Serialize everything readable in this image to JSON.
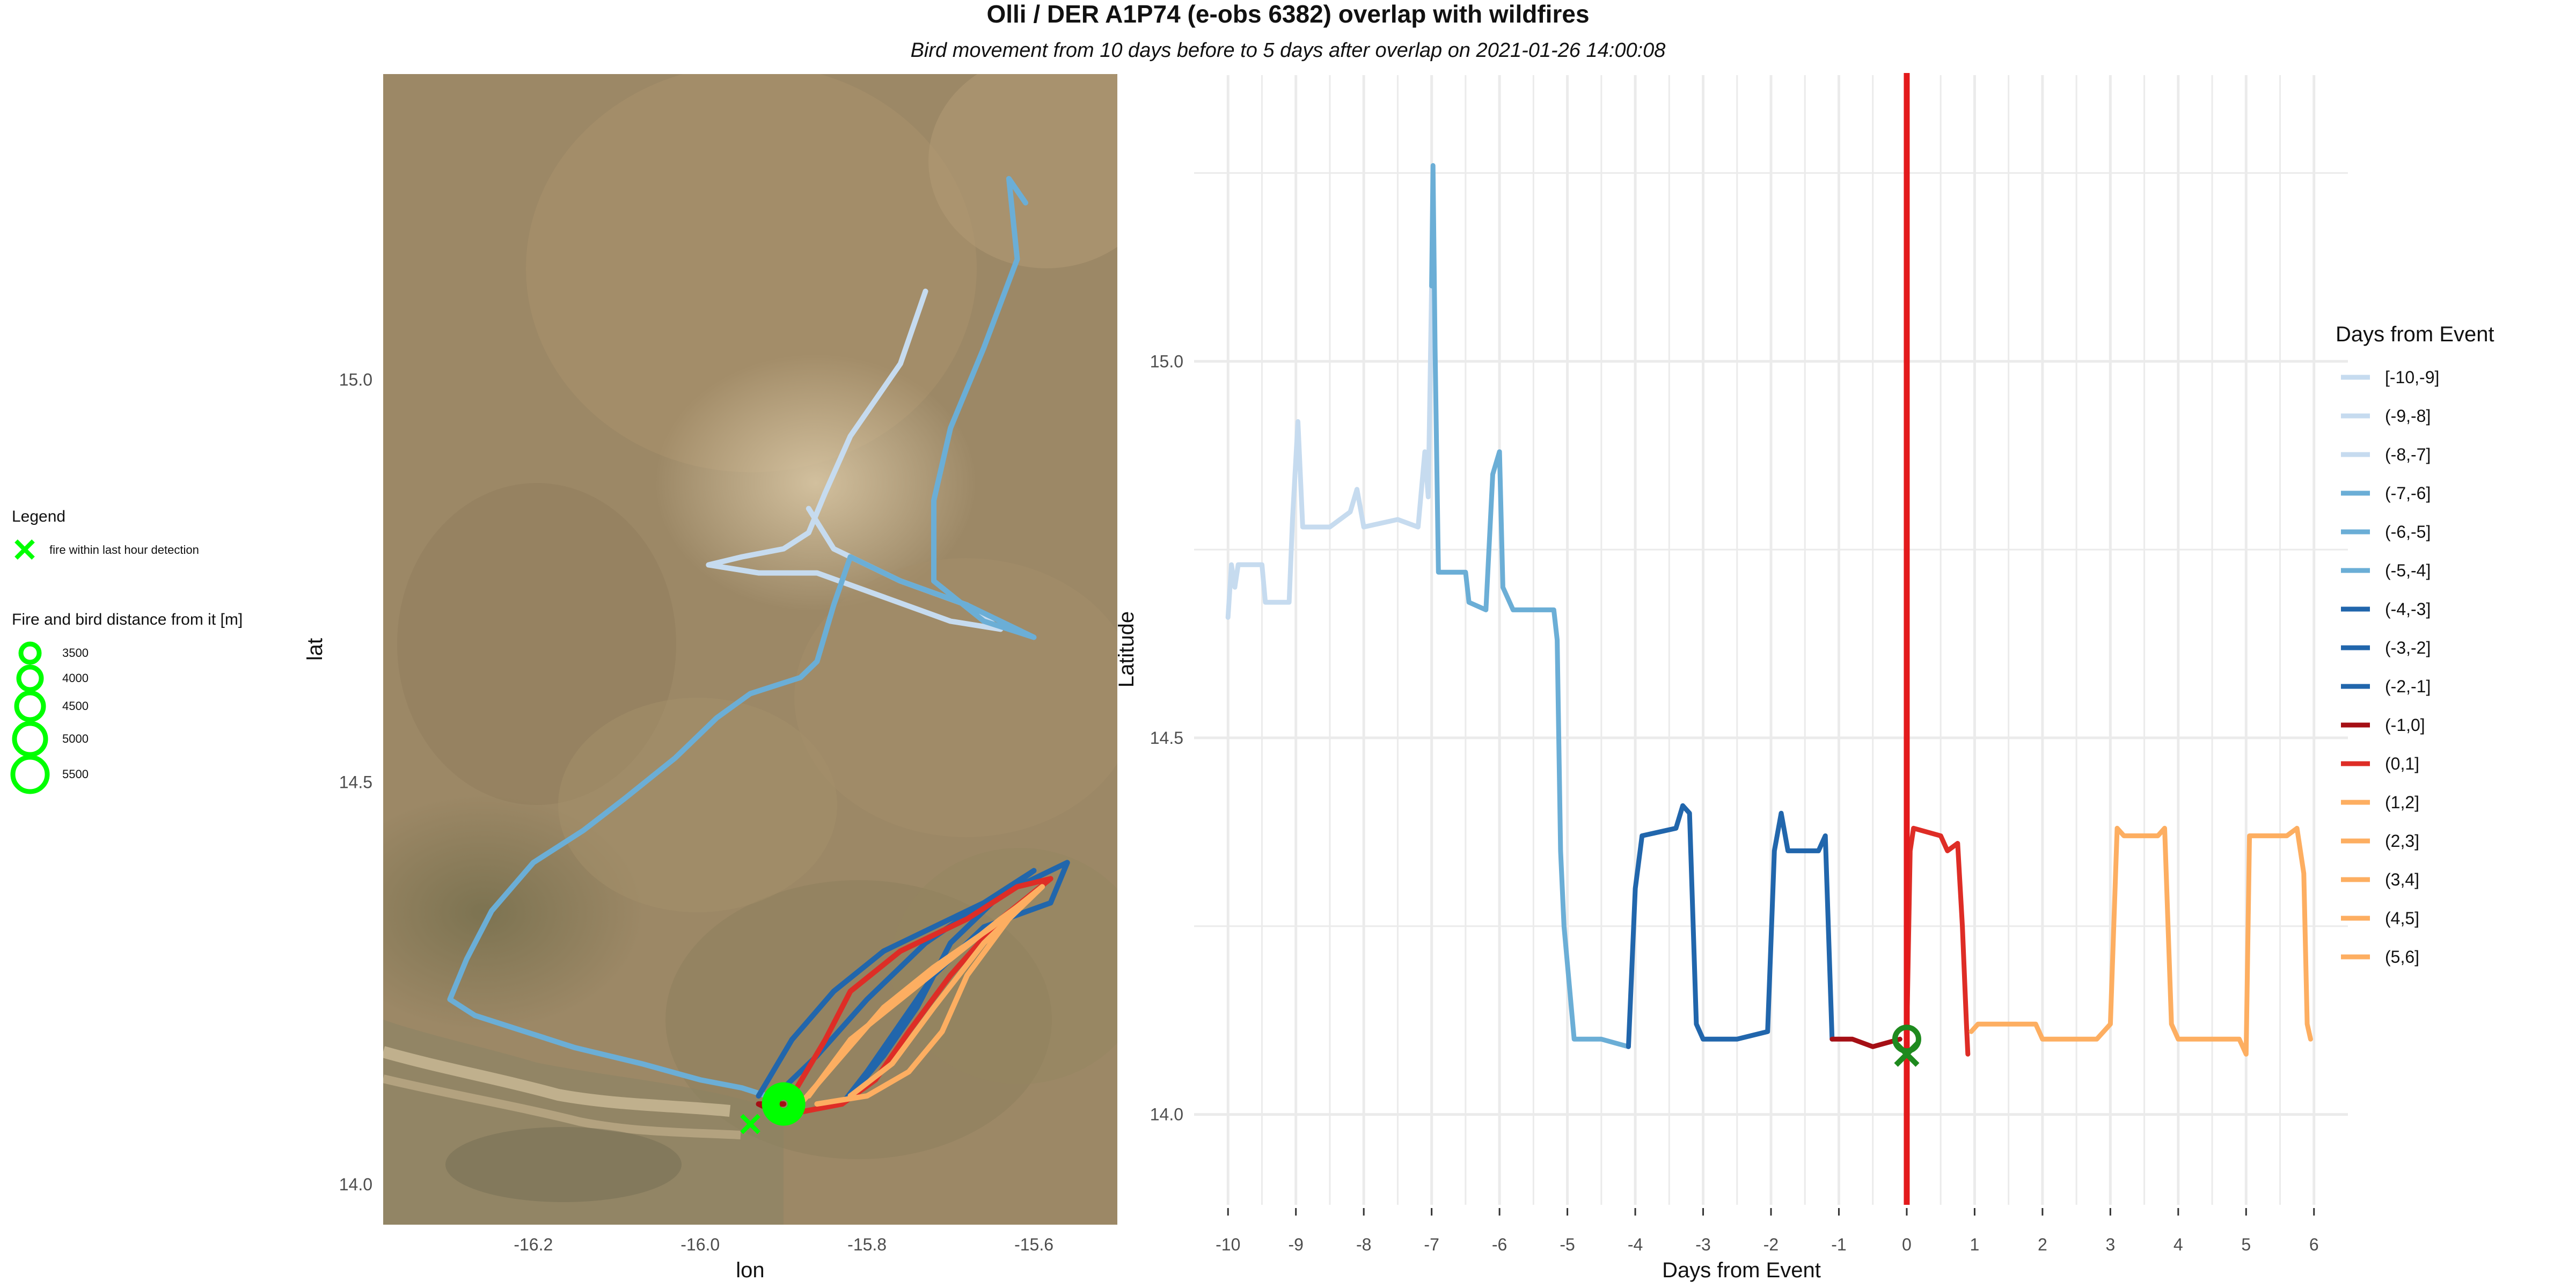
{
  "title": "Olli / DER A1P74 (e-obs 6382) overlap with wildfires",
  "subtitle": "Bird movement from 10 days before to 5 days after overlap on 2021-01-26 14:00:08",
  "colors": {
    "bg": "#ffffff",
    "grid": "#ebebeb",
    "event_line": "#e31a1c",
    "fire": "#00ff00",
    "fire_dark": "#1e8a1e",
    "light_blue": "#c6dbef",
    "mid_blue": "#6baed6",
    "dark_blue": "#2166ac",
    "dark_red": "#a50f15",
    "red": "#de2d26",
    "orange": "#fdae61",
    "map_base": "#9c8866"
  },
  "left_legend": {
    "title": "Legend",
    "fire_label": "fire within last hour detection",
    "distance_title": "Fire and bird distance from it [m]",
    "distance_values": [
      "3500",
      "4000",
      "4500",
      "5000",
      "5500"
    ]
  },
  "chart_data": [
    {
      "type": "map",
      "xlabel": "lon",
      "ylabel": "lat",
      "xlim": [
        -16.38,
        -15.5
      ],
      "ylim": [
        13.95,
        15.38
      ],
      "x_ticks": [
        "-16.2",
        "-16.0",
        "-15.8",
        "-15.6"
      ],
      "x_tick_values": [
        -16.2,
        -16.0,
        -15.8,
        -15.6
      ],
      "y_ticks": [
        "14.0",
        "14.5",
        "15.0"
      ],
      "y_tick_values": [
        14.0,
        14.5,
        15.0
      ],
      "fire_point": {
        "lon": -15.94,
        "lat": 14.075
      },
      "distance_ring_center": {
        "lon": -15.9,
        "lat": 14.1
      },
      "tracks": [
        {
          "color_key": "light_blue",
          "points": [
            [
              -15.73,
              15.11
            ],
            [
              -15.76,
              15.02
            ],
            [
              -15.82,
              14.93
            ],
            [
              -15.85,
              14.86
            ],
            [
              -15.87,
              14.81
            ],
            [
              -15.9,
              14.79
            ],
            [
              -15.95,
              14.78
            ],
            [
              -15.99,
              14.77
            ],
            [
              -15.93,
              14.76
            ],
            [
              -15.86,
              14.76
            ],
            [
              -15.78,
              14.73
            ],
            [
              -15.7,
              14.7
            ],
            [
              -15.64,
              14.69
            ],
            [
              -15.68,
              14.72
            ],
            [
              -15.76,
              14.75
            ],
            [
              -15.84,
              14.79
            ],
            [
              -15.87,
              14.84
            ]
          ]
        },
        {
          "color_key": "mid_blue",
          "points": [
            [
              -15.61,
              15.22
            ],
            [
              -15.63,
              15.25
            ],
            [
              -15.62,
              15.15
            ],
            [
              -15.66,
              15.04
            ],
            [
              -15.7,
              14.94
            ],
            [
              -15.72,
              14.85
            ],
            [
              -15.72,
              14.75
            ],
            [
              -15.66,
              14.7
            ],
            [
              -15.6,
              14.68
            ],
            [
              -15.68,
              14.72
            ],
            [
              -15.76,
              14.75
            ],
            [
              -15.82,
              14.78
            ],
            [
              -15.84,
              14.72
            ],
            [
              -15.86,
              14.65
            ],
            [
              -15.88,
              14.63
            ],
            [
              -15.94,
              14.61
            ],
            [
              -15.98,
              14.58
            ],
            [
              -16.03,
              14.53
            ],
            [
              -16.09,
              14.48
            ],
            [
              -16.14,
              14.44
            ],
            [
              -16.2,
              14.4
            ],
            [
              -16.25,
              14.34
            ],
            [
              -16.28,
              14.28
            ],
            [
              -16.3,
              14.23
            ],
            [
              -16.27,
              14.21
            ],
            [
              -16.21,
              14.19
            ],
            [
              -16.15,
              14.17
            ],
            [
              -16.07,
              14.15
            ],
            [
              -16.0,
              14.13
            ],
            [
              -15.95,
              14.12
            ],
            [
              -15.92,
              14.11
            ]
          ]
        },
        {
          "color_key": "dark_blue",
          "points": [
            [
              -15.93,
              14.11
            ],
            [
              -15.89,
              14.18
            ],
            [
              -15.84,
              14.24
            ],
            [
              -15.78,
              14.29
            ],
            [
              -15.7,
              14.33
            ],
            [
              -15.62,
              14.37
            ],
            [
              -15.56,
              14.4
            ],
            [
              -15.58,
              14.35
            ],
            [
              -15.66,
              14.32
            ],
            [
              -15.72,
              14.26
            ],
            [
              -15.76,
              14.2
            ],
            [
              -15.8,
              14.14
            ],
            [
              -15.83,
              14.1
            ]
          ]
        },
        {
          "color_key": "dark_blue",
          "points": [
            [
              -15.91,
              14.11
            ],
            [
              -15.86,
              14.16
            ],
            [
              -15.8,
              14.23
            ],
            [
              -15.73,
              14.3
            ],
            [
              -15.66,
              14.35
            ],
            [
              -15.6,
              14.39
            ],
            [
              -15.64,
              14.36
            ],
            [
              -15.7,
              14.3
            ],
            [
              -15.74,
              14.22
            ],
            [
              -15.78,
              14.16
            ],
            [
              -15.82,
              14.11
            ]
          ]
        },
        {
          "color_key": "dark_red",
          "points": [
            [
              -15.9,
              14.1
            ],
            [
              -15.93,
              14.1
            ],
            [
              -15.91,
              14.09
            ]
          ]
        },
        {
          "color_key": "red",
          "points": [
            [
              -15.89,
              14.11
            ],
            [
              -15.85,
              14.18
            ],
            [
              -15.82,
              14.24
            ],
            [
              -15.76,
              14.29
            ],
            [
              -15.68,
              14.33
            ],
            [
              -15.62,
              14.37
            ],
            [
              -15.58,
              14.38
            ],
            [
              -15.64,
              14.33
            ],
            [
              -15.7,
              14.26
            ],
            [
              -15.75,
              14.19
            ],
            [
              -15.79,
              14.13
            ],
            [
              -15.83,
              14.1
            ],
            [
              -15.88,
              14.09
            ]
          ]
        },
        {
          "color_key": "orange",
          "points": [
            [
              -15.88,
              14.1
            ],
            [
              -15.83,
              14.16
            ],
            [
              -15.78,
              14.22
            ],
            [
              -15.72,
              14.27
            ],
            [
              -15.65,
              14.32
            ],
            [
              -15.59,
              14.37
            ],
            [
              -15.63,
              14.33
            ],
            [
              -15.68,
              14.26
            ],
            [
              -15.71,
              14.19
            ],
            [
              -15.75,
              14.14
            ],
            [
              -15.8,
              14.11
            ],
            [
              -15.86,
              14.1
            ]
          ]
        },
        {
          "color_key": "orange",
          "points": [
            [
              -15.87,
              14.11
            ],
            [
              -15.82,
              14.18
            ],
            [
              -15.76,
              14.23
            ],
            [
              -15.7,
              14.28
            ],
            [
              -15.64,
              14.33
            ],
            [
              -15.6,
              14.36
            ],
            [
              -15.66,
              14.3
            ],
            [
              -15.72,
              14.22
            ],
            [
              -15.77,
              14.15
            ],
            [
              -15.82,
              14.11
            ]
          ]
        }
      ]
    },
    {
      "type": "line",
      "xlabel": "Days from Event",
      "ylabel": "Latitude",
      "xlim": [
        -10.5,
        6.5
      ],
      "ylim": [
        13.88,
        15.38
      ],
      "x_ticks": [
        "-10",
        "-9",
        "-8",
        "-7",
        "-6",
        "-5",
        "-4",
        "-3",
        "-2",
        "-1",
        "0",
        "1",
        "2",
        "3",
        "4",
        "5",
        "6"
      ],
      "x_tick_values": [
        -10,
        -9,
        -8,
        -7,
        -6,
        -5,
        -4,
        -3,
        -2,
        -1,
        0,
        1,
        2,
        3,
        4,
        5,
        6
      ],
      "y_ticks": [
        "14.0",
        "14.5",
        "15.0"
      ],
      "y_tick_values": [
        14.0,
        14.5,
        15.0
      ],
      "event_x": 0,
      "fire_marker": {
        "x": 0,
        "y": 14.08
      },
      "ring_marker": {
        "x": 0,
        "y": 14.1
      },
      "legend": {
        "title": "Days from Event",
        "position": "right",
        "items": [
          {
            "label": "[-10,-9]",
            "color_key": "light_blue"
          },
          {
            "label": "(-9,-8]",
            "color_key": "light_blue"
          },
          {
            "label": "(-8,-7]",
            "color_key": "light_blue"
          },
          {
            "label": "(-7,-6]",
            "color_key": "mid_blue"
          },
          {
            "label": "(-6,-5]",
            "color_key": "mid_blue"
          },
          {
            "label": "(-5,-4]",
            "color_key": "mid_blue"
          },
          {
            "label": "(-4,-3]",
            "color_key": "dark_blue"
          },
          {
            "label": "(-3,-2]",
            "color_key": "dark_blue"
          },
          {
            "label": "(-2,-1]",
            "color_key": "dark_blue"
          },
          {
            "label": "(-1,0]",
            "color_key": "dark_red"
          },
          {
            "label": "(0,1]",
            "color_key": "red"
          },
          {
            "label": "(1,2]",
            "color_key": "orange"
          },
          {
            "label": "(2,3]",
            "color_key": "orange"
          },
          {
            "label": "(3,4]",
            "color_key": "orange"
          },
          {
            "label": "(4,5]",
            "color_key": "orange"
          },
          {
            "label": "(5,6]",
            "color_key": "orange"
          }
        ]
      },
      "series": [
        {
          "color_key": "light_blue",
          "points": [
            [
              -10.0,
              14.66
            ],
            [
              -9.95,
              14.73
            ],
            [
              -9.9,
              14.7
            ],
            [
              -9.85,
              14.73
            ],
            [
              -9.5,
              14.73
            ],
            [
              -9.45,
              14.68
            ],
            [
              -9.1,
              14.68
            ],
            [
              -9.05,
              14.79
            ],
            [
              -8.97,
              14.92
            ],
            [
              -8.9,
              14.78
            ],
            [
              -8.5,
              14.78
            ],
            [
              -8.2,
              14.8
            ],
            [
              -8.1,
              14.83
            ],
            [
              -8.0,
              14.78
            ],
            [
              -7.5,
              14.79
            ],
            [
              -7.2,
              14.78
            ],
            [
              -7.1,
              14.88
            ],
            [
              -7.05,
              14.82
            ],
            [
              -7.0,
              15.1
            ]
          ]
        },
        {
          "color_key": "mid_blue",
          "points": [
            [
              -7.0,
              15.1
            ],
            [
              -6.98,
              15.26
            ],
            [
              -6.95,
              15.02
            ],
            [
              -6.9,
              14.72
            ],
            [
              -6.5,
              14.72
            ],
            [
              -6.45,
              14.68
            ],
            [
              -6.2,
              14.67
            ],
            [
              -6.1,
              14.85
            ],
            [
              -6.0,
              14.88
            ],
            [
              -5.95,
              14.7
            ],
            [
              -5.8,
              14.67
            ],
            [
              -5.2,
              14.67
            ],
            [
              -5.15,
              14.63
            ],
            [
              -5.1,
              14.35
            ],
            [
              -5.05,
              14.25
            ],
            [
              -5.0,
              14.2
            ],
            [
              -4.9,
              14.1
            ],
            [
              -4.5,
              14.1
            ],
            [
              -4.1,
              14.09
            ]
          ]
        },
        {
          "color_key": "dark_blue",
          "points": [
            [
              -4.1,
              14.09
            ],
            [
              -4.0,
              14.3
            ],
            [
              -3.9,
              14.37
            ],
            [
              -3.4,
              14.38
            ],
            [
              -3.3,
              14.41
            ],
            [
              -3.2,
              14.4
            ],
            [
              -3.1,
              14.12
            ],
            [
              -3.0,
              14.1
            ],
            [
              -2.5,
              14.1
            ],
            [
              -2.05,
              14.11
            ],
            [
              -1.95,
              14.35
            ],
            [
              -1.85,
              14.4
            ],
            [
              -1.75,
              14.35
            ],
            [
              -1.3,
              14.35
            ],
            [
              -1.2,
              14.37
            ],
            [
              -1.1,
              14.1
            ]
          ]
        },
        {
          "color_key": "dark_red",
          "points": [
            [
              -1.1,
              14.1
            ],
            [
              -0.8,
              14.1
            ],
            [
              -0.5,
              14.09
            ],
            [
              -0.1,
              14.1
            ]
          ]
        },
        {
          "color_key": "red",
          "points": [
            [
              0.0,
              14.1
            ],
            [
              0.05,
              14.35
            ],
            [
              0.1,
              14.38
            ],
            [
              0.5,
              14.37
            ],
            [
              0.6,
              14.35
            ],
            [
              0.75,
              14.36
            ],
            [
              0.82,
              14.25
            ],
            [
              0.88,
              14.12
            ],
            [
              0.9,
              14.08
            ]
          ]
        },
        {
          "color_key": "orange",
          "points": [
            [
              0.95,
              14.11
            ],
            [
              1.05,
              14.12
            ],
            [
              1.5,
              14.12
            ],
            [
              1.9,
              14.12
            ],
            [
              2.0,
              14.1
            ],
            [
              2.8,
              14.1
            ],
            [
              3.0,
              14.12
            ],
            [
              3.1,
              14.38
            ],
            [
              3.2,
              14.37
            ],
            [
              3.7,
              14.37
            ],
            [
              3.8,
              14.38
            ],
            [
              3.9,
              14.12
            ],
            [
              4.0,
              14.1
            ],
            [
              4.9,
              14.1
            ],
            [
              5.0,
              14.08
            ],
            [
              5.05,
              14.37
            ],
            [
              5.6,
              14.37
            ],
            [
              5.75,
              14.38
            ],
            [
              5.85,
              14.32
            ],
            [
              5.9,
              14.12
            ],
            [
              5.95,
              14.1
            ]
          ]
        }
      ]
    }
  ]
}
